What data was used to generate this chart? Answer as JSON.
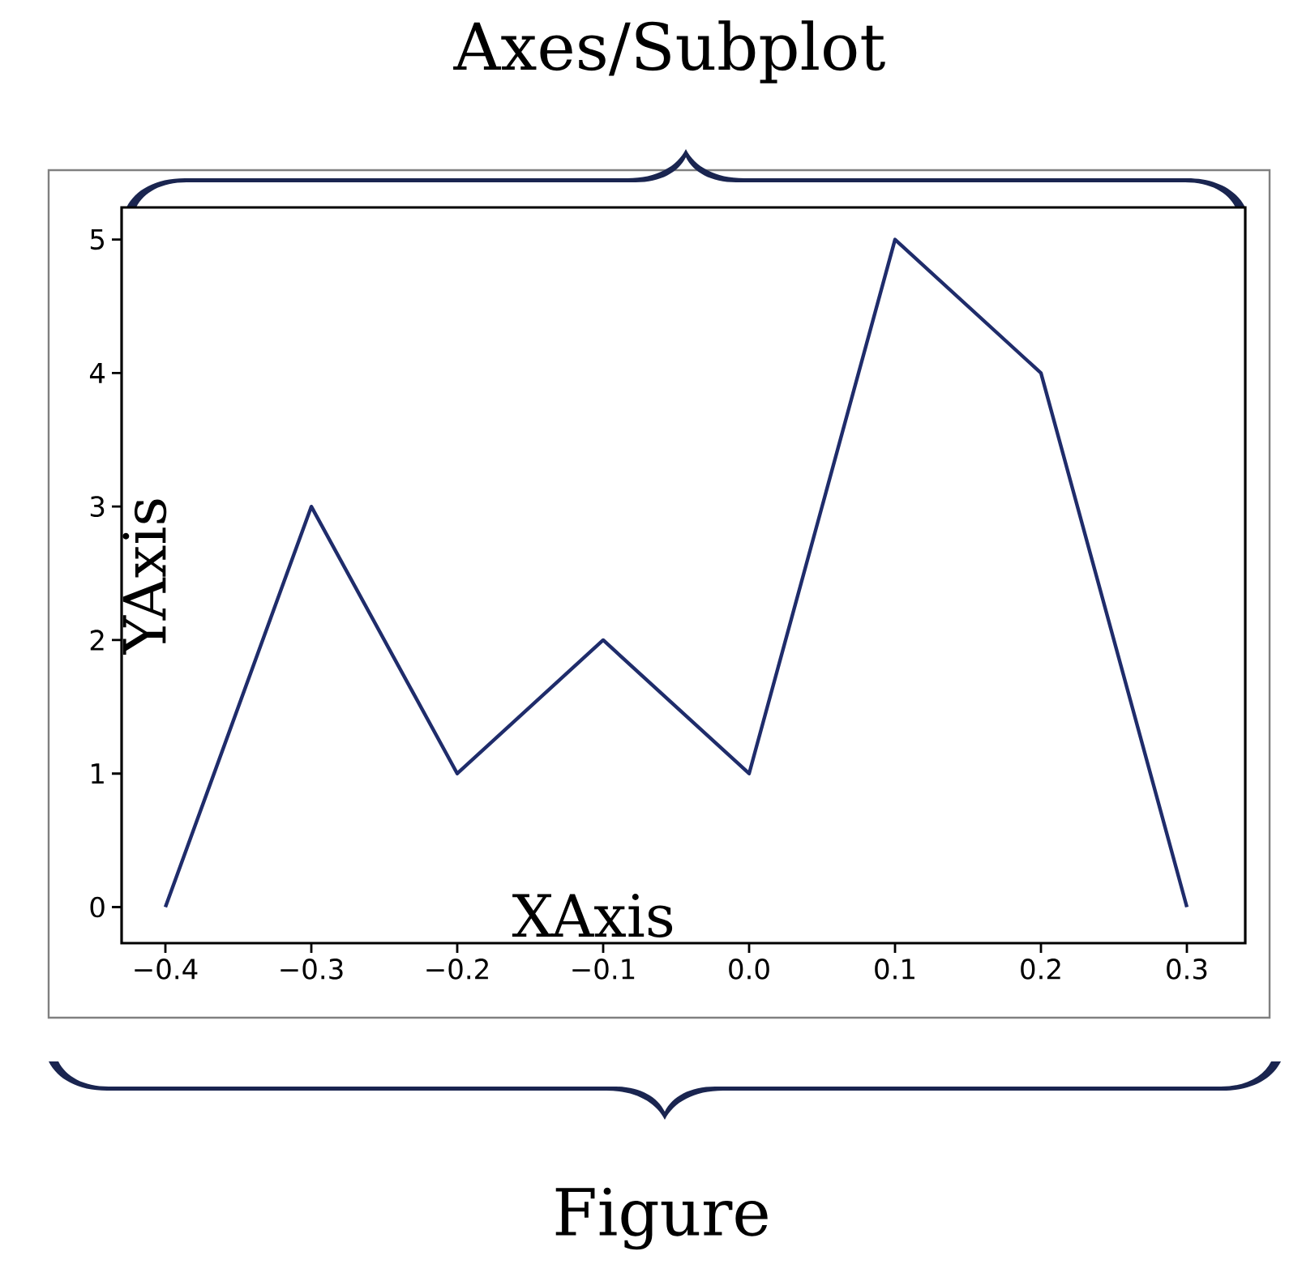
{
  "chart_data": {
    "type": "line",
    "xlabel": "XAxis",
    "ylabel": "YAxis",
    "annotations": [
      "Axes/Subplot",
      "Figure"
    ],
    "x": [
      -0.4,
      -0.3,
      -0.2,
      -0.1,
      0.0,
      0.1,
      0.2,
      0.3
    ],
    "values": [
      0,
      3,
      1,
      2,
      1,
      5,
      4,
      0
    ],
    "color": "#1f2c6b",
    "xlim": [
      -0.43,
      0.34
    ],
    "ylim": [
      -0.27,
      5.24
    ],
    "xticks": [
      {
        "value": -0.4,
        "label": "−0.4"
      },
      {
        "value": -0.3,
        "label": "−0.3"
      },
      {
        "value": -0.2,
        "label": "−0.2"
      },
      {
        "value": -0.1,
        "label": "−0.1"
      },
      {
        "value": 0.0,
        "label": "0.0"
      },
      0.1,
      0.2,
      0.3
    ],
    "yticks": [
      0,
      1,
      2,
      3,
      4,
      5
    ]
  }
}
